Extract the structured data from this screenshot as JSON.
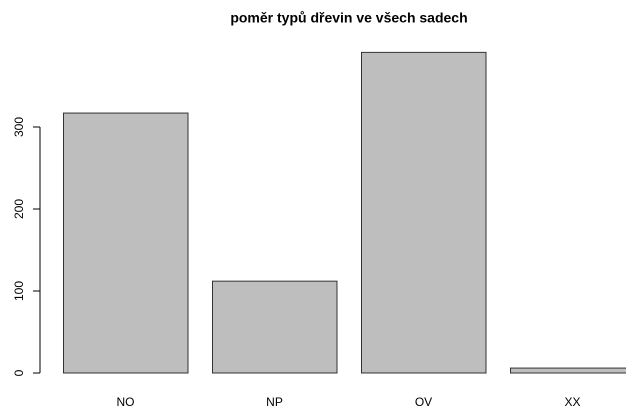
{
  "chart_data": {
    "type": "bar",
    "title": "poměr typů dřevin ve všech sadech",
    "categories": [
      "NO",
      "NP",
      "OV",
      "XX"
    ],
    "values": [
      317,
      112,
      391,
      6
    ],
    "color": "#bebebe",
    "ylim": [
      0,
      400
    ],
    "yticks": [
      0,
      100,
      200,
      300
    ],
    "grid": false
  }
}
